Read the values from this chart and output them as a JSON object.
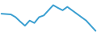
{
  "x": [
    0,
    1,
    2,
    3,
    4,
    5,
    6,
    7,
    8,
    9,
    10,
    11,
    12,
    13,
    14,
    15,
    16,
    17,
    18,
    19,
    20
  ],
  "y": [
    7.5,
    7.4,
    7.3,
    6.5,
    5.2,
    4.0,
    5.5,
    4.8,
    6.5,
    7.0,
    8.5,
    10.0,
    9.2,
    8.5,
    9.5,
    8.5,
    7.5,
    6.5,
    5.5,
    4.0,
    2.5
  ],
  "line_color": "#3a9fd1",
  "linewidth": 1.4,
  "ylim": [
    1.0,
    11.5
  ],
  "xlim": [
    -0.3,
    20.3
  ],
  "background_color": "#ffffff"
}
